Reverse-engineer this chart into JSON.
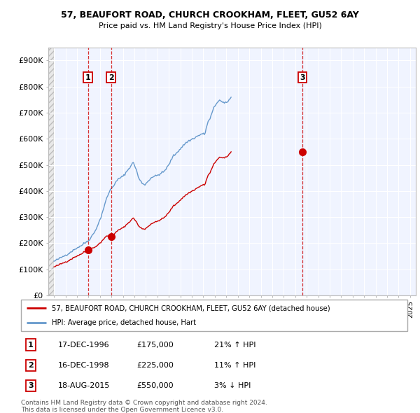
{
  "title": "57, BEAUFORT ROAD, CHURCH CROOKHAM, FLEET, GU52 6AY",
  "subtitle": "Price paid vs. HM Land Registry's House Price Index (HPI)",
  "xlim_start": 1993.5,
  "xlim_end": 2025.5,
  "ylim": [
    0,
    950000
  ],
  "yticks": [
    0,
    100000,
    200000,
    300000,
    400000,
    500000,
    600000,
    700000,
    800000,
    900000
  ],
  "ytick_labels": [
    "£0",
    "£100K",
    "£200K",
    "£300K",
    "£400K",
    "£500K",
    "£600K",
    "£700K",
    "£800K",
    "£900K"
  ],
  "sale_dates": [
    1996.96,
    1998.96,
    2015.63
  ],
  "sale_prices": [
    175000,
    225000,
    550000
  ],
  "sale_labels": [
    "1",
    "2",
    "3"
  ],
  "legend_line1": "57, BEAUFORT ROAD, CHURCH CROOKHAM, FLEET, GU52 6AY (detached house)",
  "legend_line2": "HPI: Average price, detached house, Hart",
  "table_data": [
    [
      "1",
      "17-DEC-1996",
      "£175,000",
      "21%",
      "↑",
      "HPI"
    ],
    [
      "2",
      "16-DEC-1998",
      "£225,000",
      "11%",
      "↑",
      "HPI"
    ],
    [
      "3",
      "18-AUG-2015",
      "£550,000",
      "3%",
      "↓",
      "HPI"
    ]
  ],
  "footnote": "Contains HM Land Registry data © Crown copyright and database right 2024.\nThis data is licensed under the Open Government Licence v3.0.",
  "red_color": "#cc0000",
  "blue_color": "#6699cc",
  "hpi_monthly": [
    130000,
    132000,
    134000,
    136000,
    138000,
    140000,
    142000,
    144000,
    146000,
    148000,
    150000,
    152000,
    154000,
    156000,
    158000,
    160000,
    162000,
    165000,
    168000,
    170000,
    172000,
    175000,
    177000,
    180000,
    182000,
    184000,
    186000,
    188000,
    190000,
    192000,
    195000,
    198000,
    200000,
    203000,
    205000,
    207000,
    210000,
    215000,
    220000,
    225000,
    230000,
    235000,
    240000,
    248000,
    256000,
    264000,
    272000,
    280000,
    290000,
    300000,
    312000,
    324000,
    336000,
    348000,
    360000,
    372000,
    382000,
    390000,
    398000,
    405000,
    410000,
    415000,
    420000,
    425000,
    430000,
    435000,
    440000,
    445000,
    448000,
    450000,
    452000,
    454000,
    456000,
    460000,
    465000,
    470000,
    475000,
    480000,
    485000,
    490000,
    495000,
    500000,
    505000,
    510000,
    500000,
    490000,
    480000,
    468000,
    455000,
    445000,
    440000,
    435000,
    430000,
    428000,
    426000,
    425000,
    428000,
    432000,
    436000,
    440000,
    445000,
    450000,
    452000,
    454000,
    455000,
    456000,
    457000,
    458000,
    460000,
    462000,
    464000,
    466000,
    468000,
    470000,
    472000,
    475000,
    480000,
    485000,
    490000,
    495000,
    500000,
    508000,
    516000,
    524000,
    530000,
    535000,
    538000,
    542000,
    546000,
    550000,
    554000,
    558000,
    562000,
    566000,
    570000,
    574000,
    578000,
    582000,
    585000,
    588000,
    590000,
    592000,
    594000,
    596000,
    598000,
    600000,
    602000,
    604000,
    606000,
    608000,
    610000,
    612000,
    614000,
    616000,
    618000,
    620000,
    618000,
    615000,
    625000,
    640000,
    655000,
    665000,
    670000,
    678000,
    688000,
    698000,
    708000,
    718000,
    725000,
    732000,
    738000,
    742000,
    745000,
    748000,
    745000,
    742000,
    740000,
    738000,
    737000,
    736000,
    738000,
    742000,
    746000,
    750000,
    754000,
    758000
  ],
  "hpi_start_year": 1994
}
